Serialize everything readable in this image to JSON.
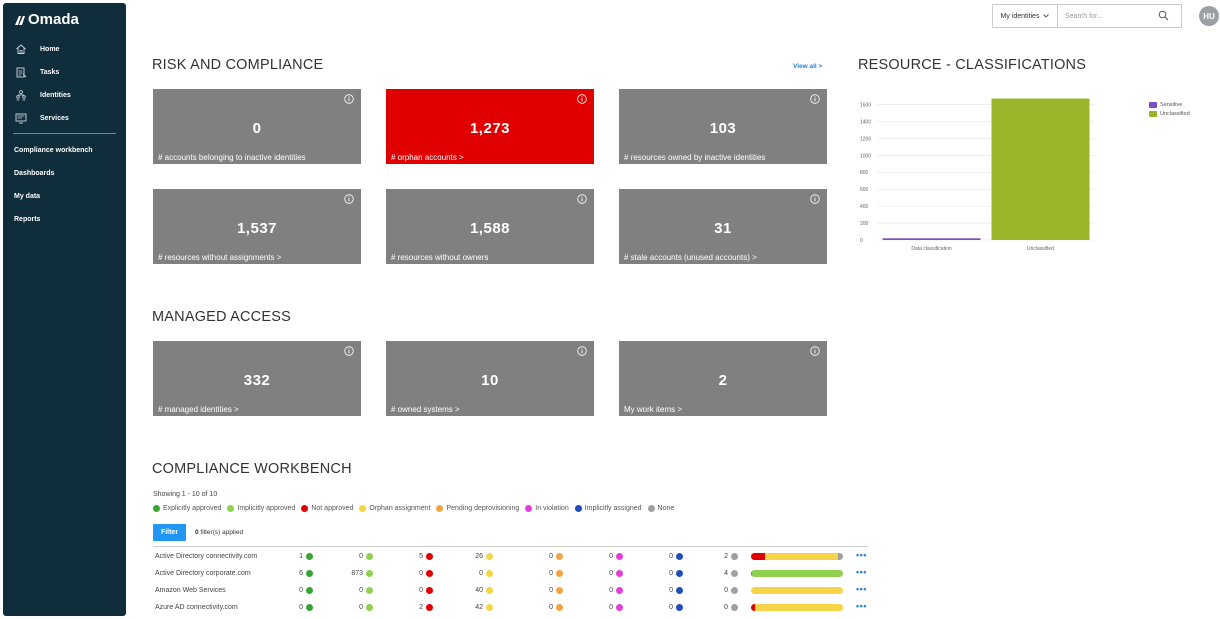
{
  "app": {
    "name": "Omada"
  },
  "sidebar": {
    "items": [
      {
        "label": "Home",
        "icon": "home-icon"
      },
      {
        "label": "Tasks",
        "icon": "tasks-icon"
      },
      {
        "label": "Identities",
        "icon": "identities-icon"
      },
      {
        "label": "Services",
        "icon": "services-icon"
      }
    ],
    "links": [
      {
        "label": "Compliance workbench"
      },
      {
        "label": "Dashboards"
      },
      {
        "label": "My data"
      },
      {
        "label": "Reports"
      }
    ]
  },
  "topbar": {
    "scope_select": "My identities",
    "search_placeholder": "Search for...",
    "avatar_initials": "HU"
  },
  "risk": {
    "title": "RISK AND COMPLIANCE",
    "view_all": "View all >",
    "tiles": [
      {
        "value": "0",
        "label": "# accounts belonging to inactive identities"
      },
      {
        "value": "1,273",
        "label": "# orphan accounts >",
        "highlight": true
      },
      {
        "value": "103",
        "label": "# resources owned by inactive identities"
      },
      {
        "value": "1,537",
        "label": "# resources without assignments >"
      },
      {
        "value": "1,588",
        "label": "# resources without owners"
      },
      {
        "value": "31",
        "label": "# stale accounts (unused accounts) >"
      }
    ]
  },
  "resource": {
    "title": "RESOURCE - CLASSIFICATIONS"
  },
  "chart_data": {
    "type": "bar",
    "categories": [
      "Data classification",
      "Unclassified"
    ],
    "series": [
      {
        "name": "Sensitive",
        "color": "#7b4fc0",
        "values": [
          20,
          0
        ]
      },
      {
        "name": "Unclassified",
        "color": "#9ab52a",
        "values": [
          0,
          1670
        ]
      }
    ],
    "yticks": [
      "0",
      "200",
      "400",
      "600",
      "800",
      "1000",
      "1200",
      "1400",
      "1600"
    ],
    "ylim": [
      0,
      1700
    ],
    "legend": "top-right",
    "grid": true
  },
  "managed": {
    "title": "MANAGED ACCESS",
    "tiles": [
      {
        "value": "332",
        "label": "# managed identities >"
      },
      {
        "value": "10",
        "label": "# owned systems >"
      },
      {
        "value": "2",
        "label": "My work items >"
      }
    ]
  },
  "workbench": {
    "title": "COMPLIANCE WORKBENCH",
    "showing": "Showing 1 - 10 of 10",
    "statuses": [
      {
        "label": "Explicitly approved",
        "color": "#3aa335"
      },
      {
        "label": "Implicitly approved",
        "color": "#8fd14f"
      },
      {
        "label": "Not approved",
        "color": "#e00000"
      },
      {
        "label": "Orphan assignment",
        "color": "#f5d547"
      },
      {
        "label": "Pending deprovisioning",
        "color": "#f4a340"
      },
      {
        "label": "In violation",
        "color": "#e040d8"
      },
      {
        "label": "Implicitly assigned",
        "color": "#1f4fb8"
      },
      {
        "label": "None",
        "color": "#a0a0a0"
      }
    ],
    "filter_label": "Filter",
    "filters_count": "0",
    "filters_suffix": " filter(s) applied",
    "more": "•••",
    "rows": [
      {
        "name": "Active Directory connectivity.com",
        "values": [
          "1",
          "0",
          "5",
          "26",
          "0",
          "0",
          "0",
          "2"
        ],
        "bar": [
          0,
          0,
          0.15,
          0.8,
          0,
          0,
          0,
          0.05
        ]
      },
      {
        "name": "Active Directory corporate.com",
        "values": [
          "6",
          "873",
          "0",
          "0",
          "0",
          "0",
          "0",
          "4"
        ],
        "bar": [
          0.01,
          0.99,
          0,
          0,
          0,
          0,
          0,
          0
        ]
      },
      {
        "name": "Amazon Web Services",
        "values": [
          "0",
          "0",
          "0",
          "40",
          "0",
          "0",
          "0",
          "0"
        ],
        "bar": [
          0,
          0,
          0,
          1,
          0,
          0,
          0,
          0
        ]
      },
      {
        "name": "Azure AD connectivity.com",
        "values": [
          "0",
          "0",
          "2",
          "42",
          "0",
          "0",
          "0",
          "0"
        ],
        "bar": [
          0,
          0,
          0.04,
          0.96,
          0,
          0,
          0,
          0
        ]
      }
    ]
  }
}
